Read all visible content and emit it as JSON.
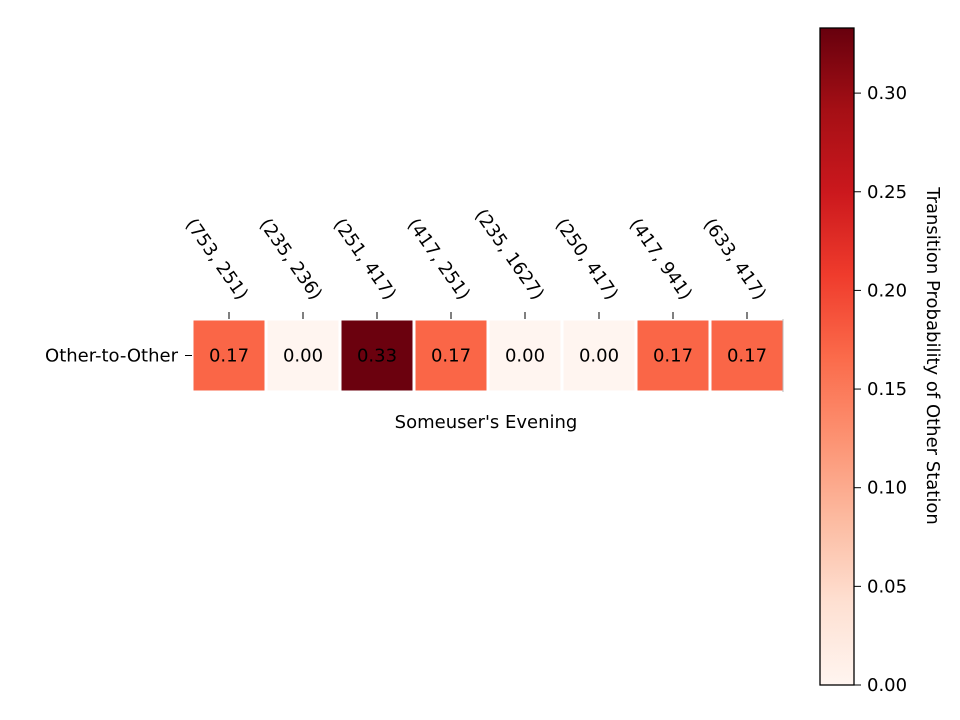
{
  "chart_data": {
    "type": "heatmap",
    "title": "",
    "xlabel": "Someuser's Evening",
    "ylabel": "",
    "rows": [
      "Other-to-Other"
    ],
    "columns": [
      "(753, 251)",
      "(235, 236)",
      "(251, 417)",
      "(417, 251)",
      "(235, 1627)",
      "(250, 417)",
      "(417, 941)",
      "(633, 417)"
    ],
    "values": [
      [
        0.17,
        0.0,
        0.33,
        0.17,
        0.0,
        0.0,
        0.17,
        0.17
      ]
    ],
    "cell_labels": [
      [
        "0.17",
        "0.00",
        "0.33",
        "0.17",
        "0.00",
        "0.00",
        "0.17",
        "0.17"
      ]
    ],
    "colormap": "Reds",
    "colorbar": {
      "label": "Transition Probability of Other Station",
      "range": [
        0,
        0.333
      ],
      "ticks": [
        0.0,
        0.05,
        0.1,
        0.15,
        0.2,
        0.25,
        0.3
      ],
      "tick_labels": [
        "0.00",
        "0.05",
        "0.10",
        "0.15",
        "0.20",
        "0.25",
        "0.30"
      ],
      "placement": "right"
    },
    "grid": false
  }
}
